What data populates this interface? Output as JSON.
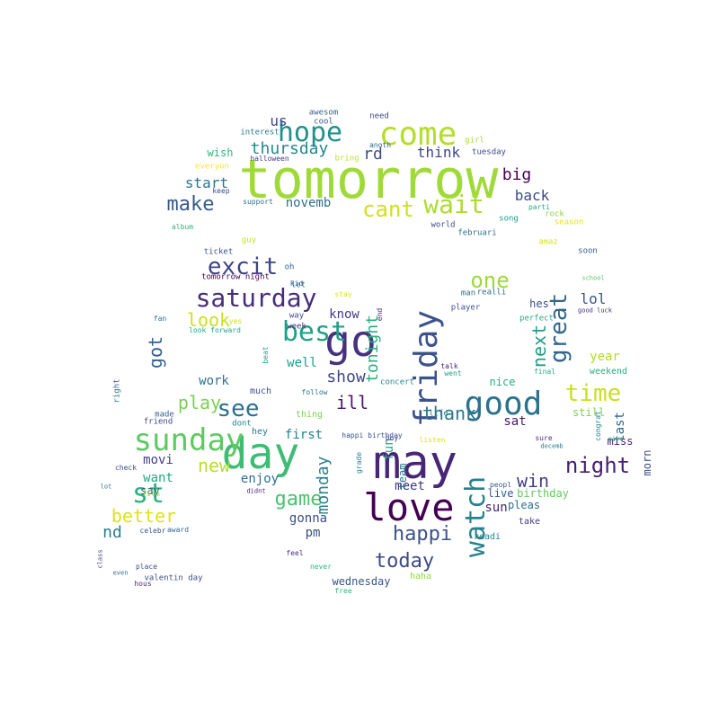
{
  "word_cloud": {
    "words": [
      {
        "text": "tomorrow",
        "color": "#a0da39"
      },
      {
        "text": "may",
        "color": "#482677"
      },
      {
        "text": "day",
        "color": "#3ebc74"
      },
      {
        "text": "go",
        "color": "#46327e"
      },
      {
        "text": "love",
        "color": "#440154"
      },
      {
        "text": "good",
        "color": "#2c728e"
      },
      {
        "text": "come",
        "color": "#b5de2b"
      },
      {
        "text": "friday",
        "color": "#3b528b"
      },
      {
        "text": "sunday",
        "color": "#5ec962"
      },
      {
        "text": "hope",
        "color": "#21918c"
      },
      {
        "text": "watch",
        "color": "#26828e"
      },
      {
        "text": "best",
        "color": "#1fa187"
      },
      {
        "text": "saturday",
        "color": "#472d7b"
      },
      {
        "text": "wait",
        "color": "#addc30"
      },
      {
        "text": "see",
        "color": "#2d708e"
      },
      {
        "text": "time",
        "color": "#c8e020"
      },
      {
        "text": "excit",
        "color": "#414487"
      },
      {
        "text": "cant",
        "color": "#d0e11c"
      },
      {
        "text": "great",
        "color": "#31688e"
      },
      {
        "text": "night",
        "color": "#481f70"
      },
      {
        "text": "one",
        "color": "#9bd93c"
      },
      {
        "text": "st",
        "color": "#2db27d"
      },
      {
        "text": "game",
        "color": "#4ac16d"
      },
      {
        "text": "make",
        "color": "#38598c"
      },
      {
        "text": "happi",
        "color": "#3b528b"
      },
      {
        "text": "today",
        "color": "#3e4989"
      },
      {
        "text": "thank",
        "color": "#2a788e"
      },
      {
        "text": "play",
        "color": "#7ad151"
      },
      {
        "text": "better",
        "color": "#dde318"
      },
      {
        "text": "ill",
        "color": "#481b6d"
      },
      {
        "text": "win",
        "color": "#433e85"
      },
      {
        "text": "next",
        "color": "#1f9e89"
      },
      {
        "text": "show",
        "color": "#3f4788"
      },
      {
        "text": "big",
        "color": "#440154"
      },
      {
        "text": "look",
        "color": "#cae11f"
      },
      {
        "text": "monday",
        "color": "#26818e"
      },
      {
        "text": "new",
        "color": "#bade28"
      },
      {
        "text": "got",
        "color": "#35608d"
      },
      {
        "text": "nd",
        "color": "#277f8e"
      },
      {
        "text": "tonight",
        "color": "#29af7f"
      },
      {
        "text": "thursday",
        "color": "#23898e"
      },
      {
        "text": "start",
        "color": "#2a768e"
      },
      {
        "text": "back",
        "color": "#3e4a89"
      },
      {
        "text": "us",
        "color": "#414287"
      },
      {
        "text": "rd",
        "color": "#3c4f8a"
      },
      {
        "text": "think",
        "color": "#404688"
      },
      {
        "text": "novemb",
        "color": "#2e6e8e"
      },
      {
        "text": "first",
        "color": "#27808e"
      },
      {
        "text": "lol",
        "color": "#3a548c"
      },
      {
        "text": "last",
        "color": "#31678e"
      },
      {
        "text": "year",
        "color": "#b0dd2f"
      },
      {
        "text": "know",
        "color": "#443983"
      },
      {
        "text": "well",
        "color": "#1e9c89"
      },
      {
        "text": "fun",
        "color": "#22a884"
      },
      {
        "text": "meet",
        "color": "#453781"
      },
      {
        "text": "sat",
        "color": "#481769"
      },
      {
        "text": "pm",
        "color": "#3b528b"
      },
      {
        "text": "gonna",
        "color": "#3e4c8a"
      },
      {
        "text": "sun",
        "color": "#482475"
      },
      {
        "text": "movi",
        "color": "#424086"
      },
      {
        "text": "enjoy",
        "color": "#2f6c8e"
      },
      {
        "text": "work",
        "color": "#2c718e"
      },
      {
        "text": "want",
        "color": "#22a785"
      },
      {
        "text": "say",
        "color": "#355f8d"
      },
      {
        "text": "wish",
        "color": "#31b57b"
      },
      {
        "text": "live",
        "color": "#38588c"
      },
      {
        "text": "miss",
        "color": "#482173"
      },
      {
        "text": "morn",
        "color": "#3d4e8a"
      },
      {
        "text": "still",
        "color": "#81d34d"
      },
      {
        "text": "weekend",
        "color": "#27ad81"
      },
      {
        "text": "wednesday",
        "color": "#3a538b"
      },
      {
        "text": "haha",
        "color": "#8fd744"
      },
      {
        "text": "hes",
        "color": "#3d4d8a"
      },
      {
        "text": "team",
        "color": "#2a788e"
      },
      {
        "text": "birthday",
        "color": "#63cb5f"
      },
      {
        "text": "pleas",
        "color": "#2d708e"
      },
      {
        "text": "take",
        "color": "#443983"
      },
      {
        "text": "readi",
        "color": "#25848e"
      },
      {
        "text": "nice",
        "color": "#27ad81"
      },
      {
        "text": "much",
        "color": "#3c4f8a"
      },
      {
        "text": "thing",
        "color": "#7ad151"
      },
      {
        "text": "made",
        "color": "#355e8d"
      },
      {
        "text": "friend",
        "color": "#414487"
      },
      {
        "text": "hey",
        "color": "#2a778e"
      },
      {
        "text": "dont",
        "color": "#26828e"
      },
      {
        "text": "tomorrow night",
        "color": "#440154"
      },
      {
        "text": "let",
        "color": "#2a768e"
      },
      {
        "text": "oh",
        "color": "#34618d"
      },
      {
        "text": "guy",
        "color": "#c2df23"
      },
      {
        "text": "ticket",
        "color": "#3b528b"
      },
      {
        "text": "world",
        "color": "#3f4788"
      },
      {
        "text": "song",
        "color": "#1f998a"
      },
      {
        "text": "februari",
        "color": "#2c728e"
      },
      {
        "text": "realli",
        "color": "#2f6b8e"
      },
      {
        "text": "man",
        "color": "#2e6d8e"
      },
      {
        "text": "player",
        "color": "#3b528b"
      },
      {
        "text": "perfect",
        "color": "#22a884"
      },
      {
        "text": "concert",
        "color": "#23888e"
      },
      {
        "text": "life",
        "color": "#2a788e"
      },
      {
        "text": "week",
        "color": "#46307e"
      },
      {
        "text": "way",
        "color": "#3f4889"
      },
      {
        "text": "look forward",
        "color": "#22a884"
      },
      {
        "text": "valentin day",
        "color": "#3d4e8a"
      },
      {
        "text": "feel",
        "color": "#472f7d"
      },
      {
        "text": "never",
        "color": "#31b57b"
      },
      {
        "text": "free",
        "color": "#30b47c"
      },
      {
        "text": "awesom",
        "color": "#355e8d"
      },
      {
        "text": "cool",
        "color": "#38598c"
      },
      {
        "text": "need",
        "color": "#3e4a89"
      },
      {
        "text": "interest",
        "color": "#2a788e"
      },
      {
        "text": "anoth",
        "color": "#31678e"
      },
      {
        "text": "girl",
        "color": "#a8db34"
      },
      {
        "text": "tuesday",
        "color": "#414487"
      },
      {
        "text": "halloween",
        "color": "#443a83"
      },
      {
        "text": "bring",
        "color": "#c2df23"
      },
      {
        "text": "everyon",
        "color": "#fde725"
      },
      {
        "text": "keep",
        "color": "#3f4788"
      },
      {
        "text": "support",
        "color": "#2c738e"
      },
      {
        "text": "album",
        "color": "#2fb47c"
      },
      {
        "text": "parti",
        "color": "#25ac82"
      },
      {
        "text": "rock",
        "color": "#8bd646"
      },
      {
        "text": "season",
        "color": "#e5e419"
      },
      {
        "text": "amaz",
        "color": "#d2e21b"
      },
      {
        "text": "soon",
        "color": "#38588c"
      },
      {
        "text": "school",
        "color": "#5cc863"
      },
      {
        "text": "good luck",
        "color": "#46307e"
      },
      {
        "text": "kid",
        "color": "#39568c"
      },
      {
        "text": "stay",
        "color": "#d8e219"
      },
      {
        "text": "end",
        "color": "#482878"
      },
      {
        "text": "yes",
        "color": "#cae11f"
      },
      {
        "text": "fan",
        "color": "#2d708e"
      },
      {
        "text": "beat",
        "color": "#20a386"
      },
      {
        "text": "right",
        "color": "#2a788e"
      },
      {
        "text": "check",
        "color": "#3e4a89"
      },
      {
        "text": "film",
        "color": "#8bd646"
      },
      {
        "text": "celebr",
        "color": "#39568c"
      },
      {
        "text": "award",
        "color": "#31688e"
      },
      {
        "text": "hous",
        "color": "#472c7a"
      },
      {
        "text": "didnt",
        "color": "#481b6d"
      },
      {
        "text": "follow",
        "color": "#2d718e"
      },
      {
        "text": "went",
        "color": "#1fa088"
      },
      {
        "text": "final",
        "color": "#25ac82"
      },
      {
        "text": "talk",
        "color": "#482173"
      },
      {
        "text": "boy",
        "color": "#433e85"
      },
      {
        "text": "listen",
        "color": "#dde318"
      },
      {
        "text": "happi birthday",
        "color": "#3b528b"
      },
      {
        "text": "sure",
        "color": "#46307e"
      },
      {
        "text": "decemb",
        "color": "#29798e"
      },
      {
        "text": "congrat",
        "color": "#277f8e"
      },
      {
        "text": "give",
        "color": "#2db27d"
      },
      {
        "text": "peopl",
        "color": "#38588c"
      },
      {
        "text": "grade",
        "color": "#26828e"
      },
      {
        "text": "even",
        "color": "#2f6c8e"
      },
      {
        "text": "class",
        "color": "#404588"
      },
      {
        "text": "place",
        "color": "#3d4d8a"
      },
      {
        "text": "lot",
        "color": "#2c718e"
      },
      {
        "text": "happi valentin",
        "color": "#3c4f8a"
      }
    ]
  }
}
